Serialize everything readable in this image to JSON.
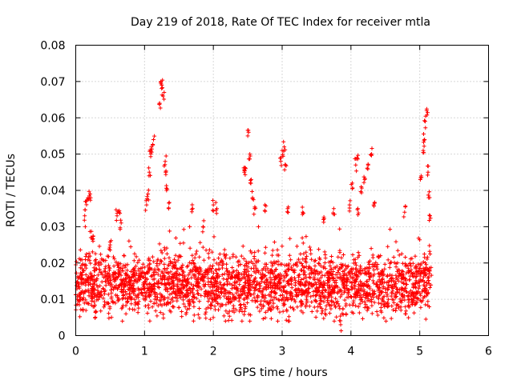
{
  "chart_data": {
    "type": "scatter",
    "title": "Day 219 of 2018, Rate Of TEC Index for receiver mtla",
    "xlabel": "GPS time / hours",
    "ylabel": "ROTI / TECUs",
    "xlim": [
      0,
      6
    ],
    "ylim": [
      0,
      0.08
    ],
    "x_ticks": [
      "0",
      "1",
      "2",
      "3",
      "4",
      "5",
      "6"
    ],
    "y_ticks": [
      "0",
      "0.01",
      "0.02",
      "0.03",
      "0.04",
      "0.05",
      "0.06",
      "0.07",
      "0.08"
    ],
    "grid": true,
    "marker": "+",
    "color": "#ff0000",
    "x_range_of_data": [
      0,
      5.17
    ],
    "baseline_band": [
      0.005,
      0.025
    ],
    "series": [
      {
        "name": "ROTI",
        "description_points": [
          {
            "x": 0.13,
            "y": 0.033
          },
          {
            "x": 0.15,
            "y": 0.037
          },
          {
            "x": 0.18,
            "y": 0.038
          },
          {
            "x": 0.21,
            "y": 0.039
          },
          {
            "x": 0.22,
            "y": 0.027
          },
          {
            "x": 0.25,
            "y": 0.026
          },
          {
            "x": 0.5,
            "y": 0.025
          },
          {
            "x": 0.6,
            "y": 0.033
          },
          {
            "x": 0.63,
            "y": 0.034
          },
          {
            "x": 0.66,
            "y": 0.031
          },
          {
            "x": 1.03,
            "y": 0.036
          },
          {
            "x": 1.05,
            "y": 0.039
          },
          {
            "x": 1.07,
            "y": 0.045
          },
          {
            "x": 1.09,
            "y": 0.05
          },
          {
            "x": 1.1,
            "y": 0.052
          },
          {
            "x": 1.13,
            "y": 0.054
          },
          {
            "x": 1.22,
            "y": 0.064
          },
          {
            "x": 1.24,
            "y": 0.07
          },
          {
            "x": 1.25,
            "y": 0.069
          },
          {
            "x": 1.27,
            "y": 0.066
          },
          {
            "x": 1.3,
            "y": 0.048
          },
          {
            "x": 1.31,
            "y": 0.045
          },
          {
            "x": 1.32,
            "y": 0.04
          },
          {
            "x": 1.35,
            "y": 0.035
          },
          {
            "x": 1.7,
            "y": 0.035
          },
          {
            "x": 1.85,
            "y": 0.03
          },
          {
            "x": 2.0,
            "y": 0.036
          },
          {
            "x": 2.05,
            "y": 0.035
          },
          {
            "x": 2.45,
            "y": 0.045
          },
          {
            "x": 2.47,
            "y": 0.046
          },
          {
            "x": 2.5,
            "y": 0.055
          },
          {
            "x": 2.53,
            "y": 0.05
          },
          {
            "x": 2.55,
            "y": 0.043
          },
          {
            "x": 2.57,
            "y": 0.038
          },
          {
            "x": 2.6,
            "y": 0.035
          },
          {
            "x": 2.75,
            "y": 0.036
          },
          {
            "x": 2.98,
            "y": 0.048
          },
          {
            "x": 3.0,
            "y": 0.051
          },
          {
            "x": 3.03,
            "y": 0.052
          },
          {
            "x": 3.05,
            "y": 0.047
          },
          {
            "x": 3.08,
            "y": 0.035
          },
          {
            "x": 3.3,
            "y": 0.034
          },
          {
            "x": 3.6,
            "y": 0.032
          },
          {
            "x": 3.75,
            "y": 0.035
          },
          {
            "x": 3.85,
            "y": 0.003
          },
          {
            "x": 3.98,
            "y": 0.036
          },
          {
            "x": 4.02,
            "y": 0.042
          },
          {
            "x": 4.07,
            "y": 0.047
          },
          {
            "x": 4.09,
            "y": 0.049
          },
          {
            "x": 4.1,
            "y": 0.035
          },
          {
            "x": 4.15,
            "y": 0.041
          },
          {
            "x": 4.2,
            "y": 0.043
          },
          {
            "x": 4.25,
            "y": 0.047
          },
          {
            "x": 4.3,
            "y": 0.05
          },
          {
            "x": 4.33,
            "y": 0.036
          },
          {
            "x": 4.78,
            "y": 0.034
          },
          {
            "x": 5.02,
            "y": 0.044
          },
          {
            "x": 5.05,
            "y": 0.051
          },
          {
            "x": 5.07,
            "y": 0.054
          },
          {
            "x": 5.08,
            "y": 0.059
          },
          {
            "x": 5.1,
            "y": 0.062
          },
          {
            "x": 5.12,
            "y": 0.045
          },
          {
            "x": 5.13,
            "y": 0.038
          },
          {
            "x": 5.15,
            "y": 0.033
          }
        ]
      }
    ]
  }
}
